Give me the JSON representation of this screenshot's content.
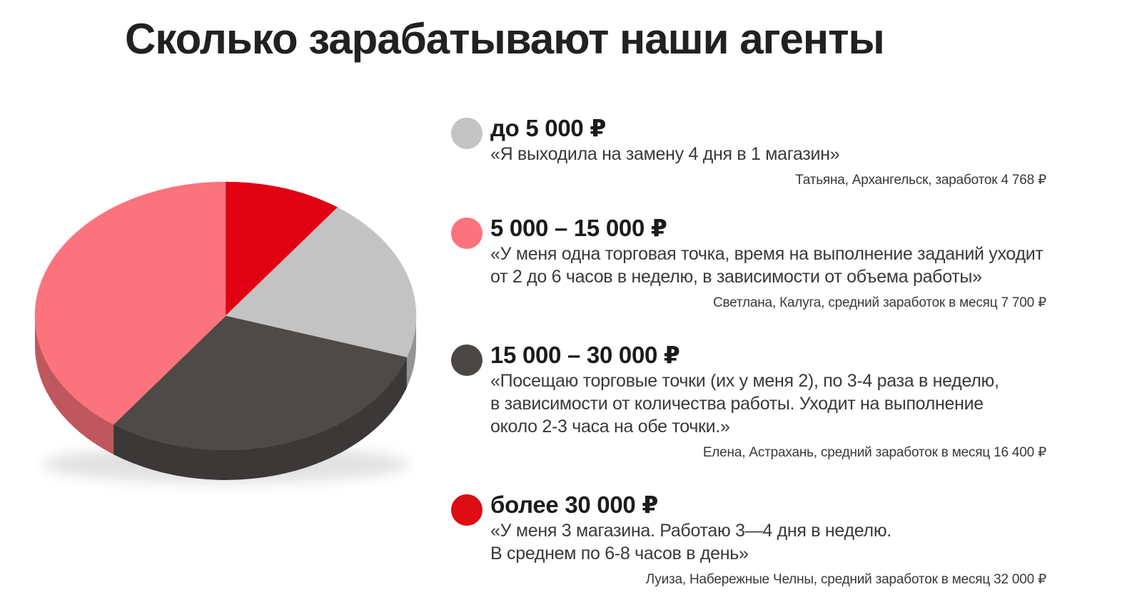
{
  "title": "Сколько зарабатывают наши агенты",
  "chart_data": {
    "type": "pie",
    "style": "3d",
    "title": "Сколько зарабатывают наши агенты",
    "direction": "clockwise",
    "start_angle_deg": 0,
    "legend_position": "right",
    "slices": [
      {
        "label": "более 30 000 ₽",
        "percent": 10,
        "color": "#e00213"
      },
      {
        "label": "до 5 000 ₽",
        "percent": 20,
        "color": "#c3c3c3"
      },
      {
        "label": "15 000 – 30 000 ₽",
        "percent": 30,
        "color": "#4d4a48"
      },
      {
        "label": "5 000 – 15 000 ₽",
        "percent": 40,
        "color": "#fb737c"
      }
    ]
  },
  "legend": {
    "items": [
      {
        "label": "до 5 000 ₽",
        "color": "#c3c3c3",
        "quote": "«Я выходила на замену 4 дня в 1 магазин»",
        "attribution": "Татьяна, Архангельск, заработок 4 768 ₽"
      },
      {
        "label": "5 000 – 15 000 ₽",
        "color": "#fb737c",
        "quote": "«У меня одна торговая точка, время на выполнение заданий уходит\nот 2 до 6 часов в неделю, в зависимости от объема работы»",
        "attribution": "Светлана, Калуга, средний заработок в месяц 7 700 ₽"
      },
      {
        "label": "15 000 – 30 000 ₽",
        "color": "#4a4745",
        "quote": "«Посещаю торговые точки (их у меня 2), по 3-4 раза в неделю,\nв зависимости от количества работы. Уходит на выполнение\nоколо 2-3 часа на обе точки.»",
        "attribution": "Елена, Астрахань, средний заработок в месяц 16 400 ₽"
      },
      {
        "label": "более 30 000 ₽",
        "color": "#dd0d14",
        "quote": "«У меня 3 магазина. Работаю 3—4 дня в неделю.\nВ среднем по 6-8 часов в день»",
        "attribution": "Луиза, Набережные Челны, средний заработок в месяц 32 000 ₽"
      }
    ]
  }
}
